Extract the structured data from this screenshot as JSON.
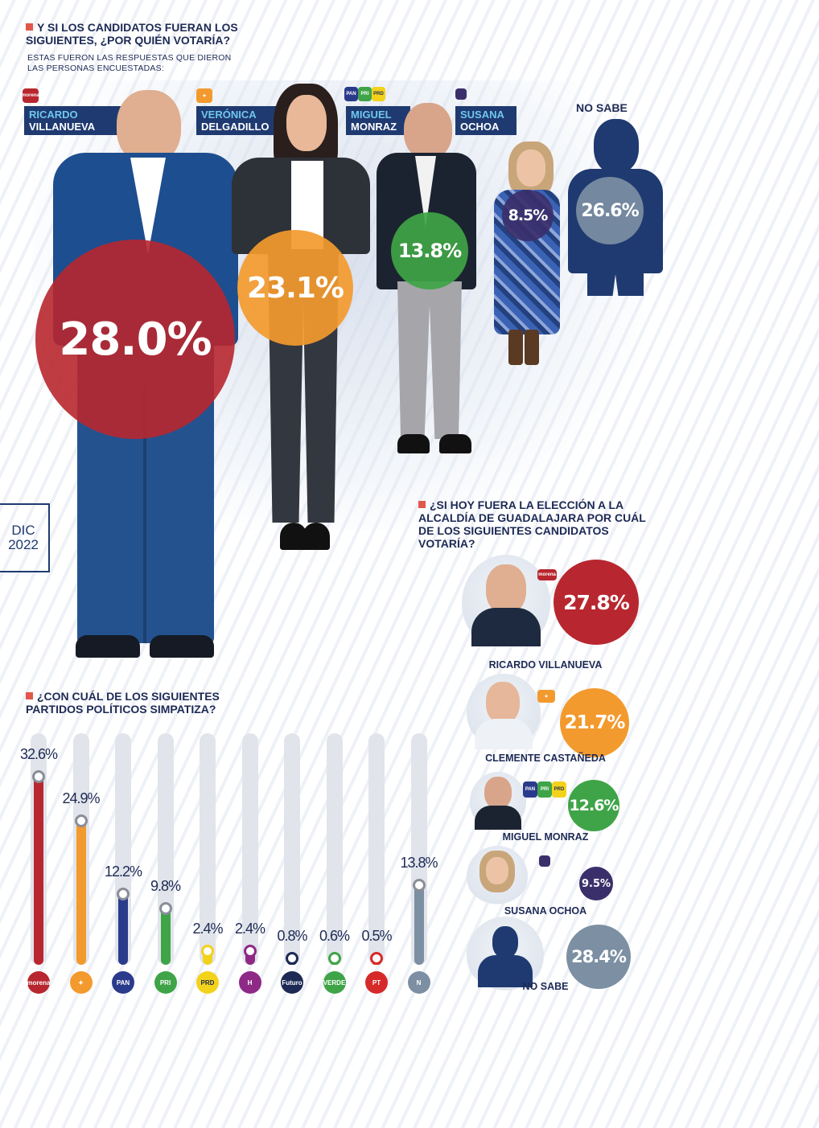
{
  "section1": {
    "title_line1": "Y SI LOS CANDIDATOS FUERAN LOS",
    "title_line2": "SIGUIENTES, ¿POR QUIÉN VOTARÍA?",
    "subtitle_line1": "ESTAS FUERON LAS RESPUESTAS QUE DIERON",
    "subtitle_line2": "LAS PERSONAS ENCUESTADAS:",
    "candidates": [
      {
        "first": "RICARDO",
        "last": "VILLANUEVA",
        "party_logo": "morena",
        "value_label": "28.0%",
        "color": "#b8272f"
      },
      {
        "first": "VERÓNICA",
        "last": "DELGADILLO",
        "party_logo": "movimiento-ciudadano",
        "value_label": "23.1%",
        "color": "#f39a2e"
      },
      {
        "first": "MIGUEL",
        "last": "MONRAZ",
        "party_logo": "PAN-PRI-PRD",
        "value_label": "13.8%",
        "color": "#3fa447"
      },
      {
        "first": "SUSANA",
        "last": "OCHOA",
        "party_logo": "futuro",
        "value_label": "8.5%",
        "color": "#3b2f6b"
      },
      {
        "first": "",
        "last": "NO SABE",
        "party_logo": "",
        "value_label": "26.6%",
        "color": "#7c8fa3"
      }
    ]
  },
  "date_badge": {
    "line1": "DIC",
    "line2": "2022"
  },
  "logo_text": {
    "morena": "morena",
    "pan": "PAN",
    "pri": "PRI",
    "prd": "PRD",
    "verde": "VERDE",
    "pt": "PT",
    "hagamos": "H",
    "futuro": "Futuro",
    "n": "N"
  },
  "section2": {
    "title_line1": "¿CON CUÁL DE LOS SIGUIENTES",
    "title_line2": "PARTIDOS POLÍTICOS SIMPATIZA?"
  },
  "section3": {
    "title_line1": "¿SI HOY FUERA LA ELECCIÓN A LA",
    "title_line2": "ALCALDÍA DE GUADALAJARA POR CUÁL",
    "title_line3": "DE LOS SIGUIENTES CANDIDATOS",
    "title_line4": "VOTARÍA?",
    "candidates": [
      {
        "name": "RICARDO VILLANUEVA",
        "value_label": "27.8%",
        "color": "#b8272f"
      },
      {
        "name": "CLEMENTE CASTAÑEDA",
        "value_label": "21.7%",
        "color": "#f39a2e"
      },
      {
        "name": "MIGUEL MONRAZ",
        "value_label": "12.6%",
        "color": "#3fa447"
      },
      {
        "name": "SUSANA OCHOA",
        "value_label": "9.5%",
        "color": "#3b2f6b"
      },
      {
        "name": "NO SABE",
        "value_label": "28.4%",
        "color": "#7c8fa3"
      }
    ]
  },
  "chart_data": [
    {
      "type": "bar",
      "title": "Y SI LOS CANDIDATOS FUERAN LOS SIGUIENTES, ¿POR QUIÉN VOTARÍA?",
      "categories": [
        "RICARDO VILLANUEVA",
        "VERÓNICA DELGADILLO",
        "MIGUEL MONRAZ",
        "SUSANA OCHOA",
        "NO SABE"
      ],
      "values": [
        28.0,
        23.1,
        13.8,
        8.5,
        26.6
      ],
      "unit": "%"
    },
    {
      "type": "bar",
      "title": "¿CON CUÁL DE LOS SIGUIENTES PARTIDOS POLÍTICOS SIMPATIZA?",
      "categories": [
        "morena",
        "movimiento-ciudadano",
        "PAN",
        "PRI",
        "PRD",
        "hagamos",
        "futuro",
        "VERDE",
        "PT",
        "ninguno"
      ],
      "values": [
        32.6,
        24.9,
        12.2,
        9.8,
        2.4,
        2.4,
        0.8,
        0.6,
        0.5,
        13.8
      ],
      "value_labels": [
        "32.6%",
        "24.9%",
        "12.2%",
        "9.8%",
        "2.4%",
        "2.4%",
        "0.8%",
        "0.6%",
        "0.5%",
        "13.8%"
      ],
      "colors": [
        "#b8272f",
        "#f39a2e",
        "#2b3b8c",
        "#3fa447",
        "#f3d21b",
        "#8e2a86",
        "#1d2a55",
        "#3fa447",
        "#d62a2a",
        "#7c8fa3"
      ],
      "ylim": [
        0,
        35
      ]
    },
    {
      "type": "bar",
      "title": "¿SI HOY FUERA LA ELECCIÓN A LA ALCALDÍA DE GUADALAJARA POR CUÁL DE LOS SIGUIENTES CANDIDATOS VOTARÍA?",
      "categories": [
        "RICARDO VILLANUEVA",
        "CLEMENTE CASTAÑEDA",
        "MIGUEL MONRAZ",
        "SUSANA OCHOA",
        "NO SABE"
      ],
      "values": [
        27.8,
        21.7,
        12.6,
        9.5,
        28.4
      ],
      "unit": "%"
    }
  ]
}
